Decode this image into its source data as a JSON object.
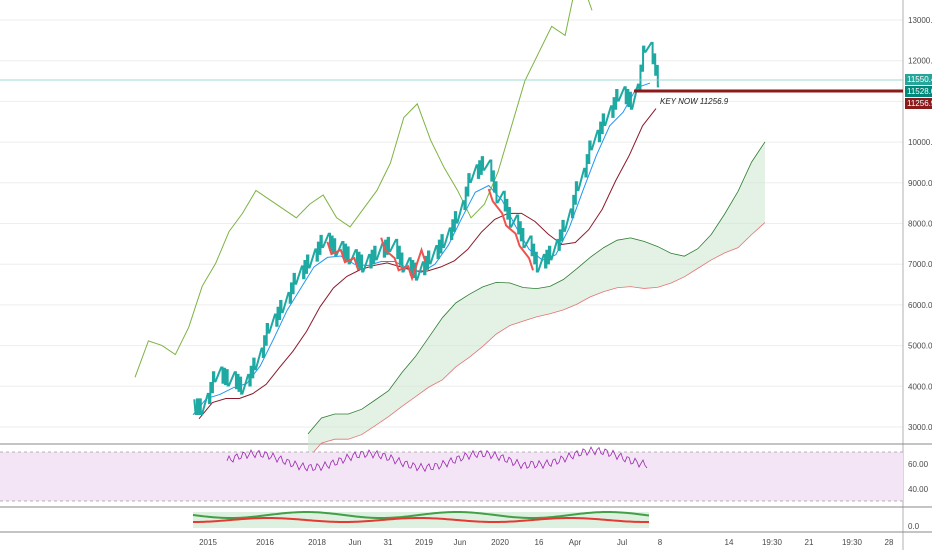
{
  "chart_data": [
    {
      "type": "line",
      "panel": "price",
      "chart_style": "kagi / line-break style price with ichimoku cloud",
      "y_axis": {
        "ticks": [
          "13000.0",
          "12000.0",
          "11000.0",
          "10000.0",
          "9000.0",
          "8000.0",
          "7000.0",
          "6000.0",
          "5000.0",
          "4000.0",
          "3000.0"
        ],
        "ylim": [
          2600,
          13500
        ]
      },
      "x_axis": {
        "ticks": [
          "2015",
          "2016",
          "2018",
          "Jun",
          "31",
          "2019",
          "Jun",
          "2020",
          "16",
          "Apr",
          "Jul",
          "8",
          "14",
          "19:30",
          "21",
          "19:30",
          "28"
        ]
      },
      "price_series": {
        "x": [
          0,
          1.5,
          3,
          4.5,
          6,
          7.5,
          9,
          10.5,
          12,
          13.5,
          15,
          16.5,
          18,
          19.5,
          21,
          22.5,
          24,
          25.5,
          27,
          28.5,
          30,
          31.5,
          33,
          34.5,
          36,
          37.5,
          39,
          40.5,
          42,
          43.5,
          45,
          46.5,
          48,
          49.5,
          51
        ],
        "values": [
          3500,
          4300,
          4200,
          4000,
          4600,
          5500,
          6000,
          6700,
          7100,
          7600,
          7400,
          7200,
          7000,
          7300,
          7500,
          7000,
          6800,
          7200,
          7600,
          8200,
          9200,
          9500,
          8700,
          8100,
          7600,
          7000,
          7300,
          8000,
          9000,
          10000,
          10600,
          11200,
          11000,
          12400,
          11550
        ]
      },
      "series": [
        {
          "name": "",
          "color": "#2196f3",
          "role": "conversion-line"
        },
        {
          "name": "",
          "color": "#8b1a2a",
          "role": "base-line"
        },
        {
          "name": "",
          "color": "#7cb342",
          "role": "lagging-span"
        },
        {
          "name": "",
          "color": "#2e7d32",
          "role": "leading-span-a"
        },
        {
          "name": "",
          "color": "#e57373",
          "role": "leading-span-b"
        }
      ],
      "price_labels": [
        {
          "text": "11550.4",
          "color": "#26a69a"
        },
        {
          "text": "11528.0",
          "color": "#00897b"
        },
        {
          "text": "11256.9",
          "color": "#8b1a1a"
        }
      ],
      "annotation": {
        "text": "KEY NOW 11256.9",
        "level": 11256.9
      },
      "colors": {
        "up": "#1fa9a3",
        "down": "#ef5350",
        "level_line": "#8b1a1a"
      }
    },
    {
      "type": "line",
      "panel": "oscillator",
      "y_axis": {
        "ticks": [
          "60.00",
          "40.00"
        ],
        "ylim": [
          25,
          75
        ]
      },
      "band": {
        "upper": 70,
        "lower": 30,
        "fill": "#f3e5f5"
      },
      "color": "#9c27b0"
    },
    {
      "type": "line",
      "panel": "oscillator-2",
      "y_axis": {
        "ticks": [
          "0.0"
        ]
      },
      "colors": {
        "line_a": "#43a047",
        "line_b": "#e53935",
        "band": "#c8e6c9"
      }
    }
  ]
}
